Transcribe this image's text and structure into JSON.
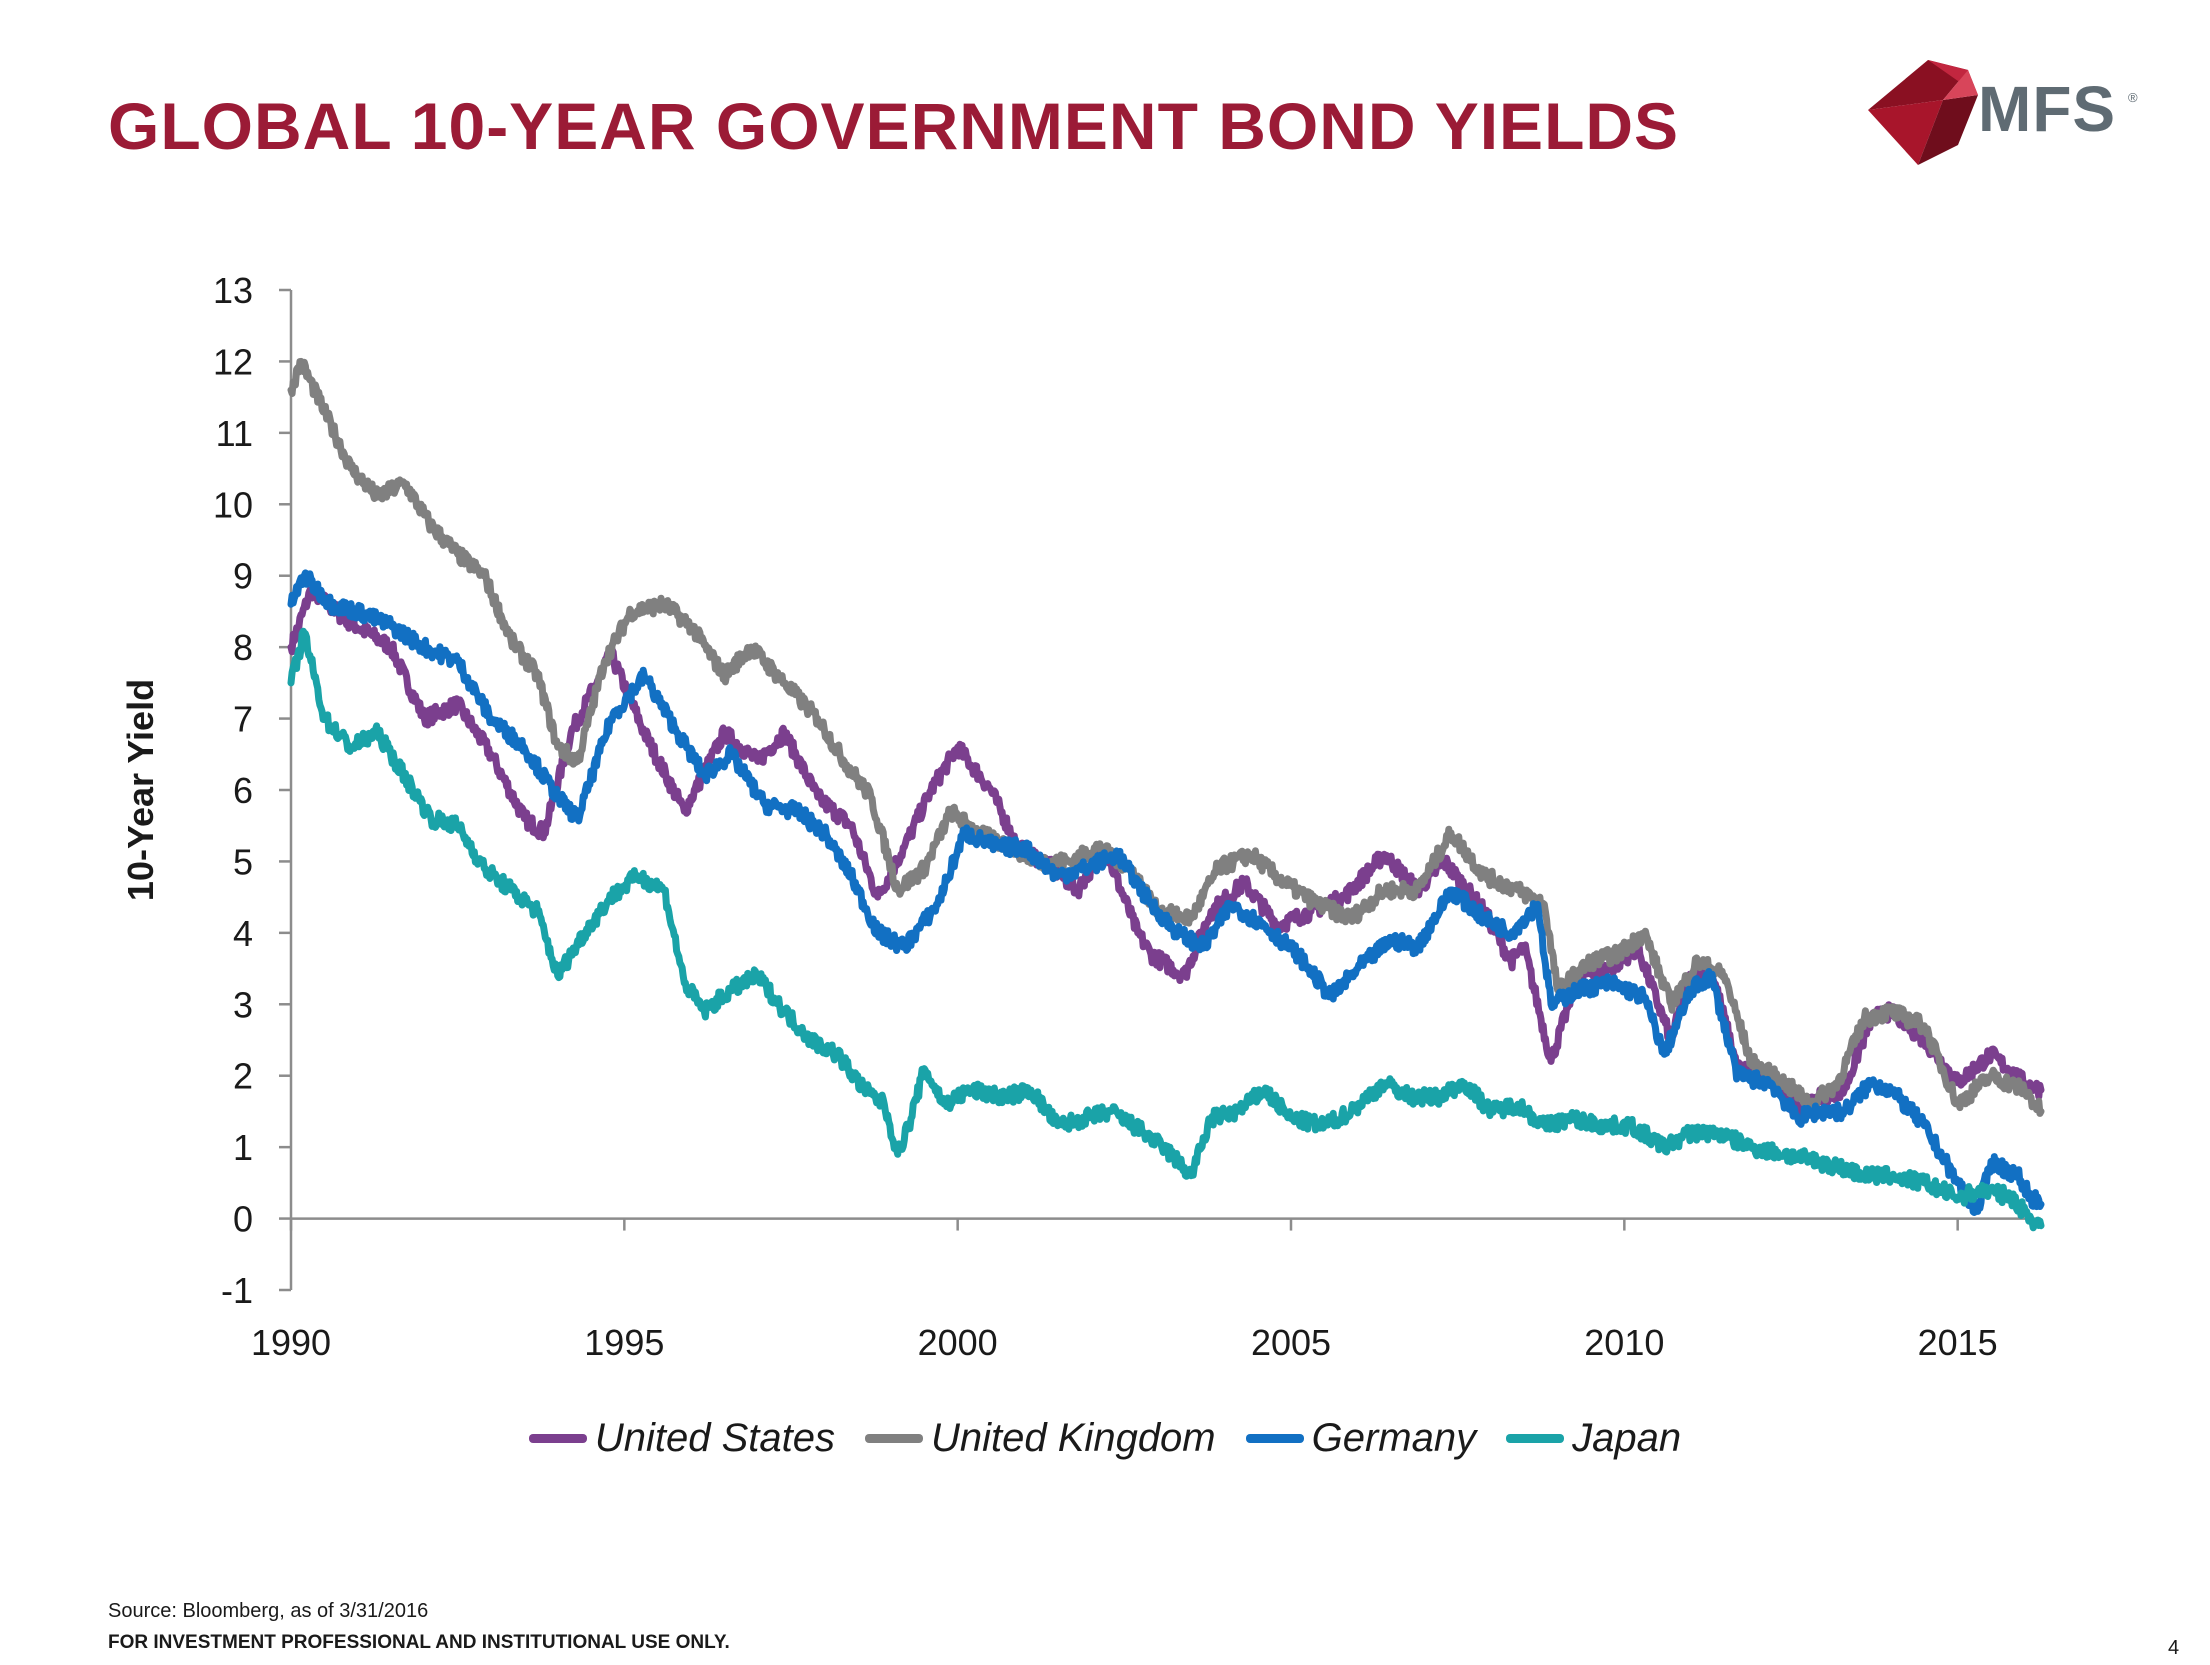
{
  "header": {
    "title": "GLOBAL 10-YEAR GOVERNMENT BOND YIELDS",
    "logo_text": "MFS",
    "logo_reg": "®"
  },
  "colors": {
    "title": "#9b1b36",
    "united_states": "#7b3f8e",
    "united_kingdom": "#808080",
    "germany": "#1270c3",
    "japan": "#1aa3a8",
    "logo_red": "#a8152b"
  },
  "chart_data": {
    "type": "line",
    "title": "",
    "xlabel": "",
    "ylabel": "10-Year Yield",
    "xlim": [
      1990,
      2016.25
    ],
    "ylim": [
      -1,
      13
    ],
    "x_ticks": [
      "1990",
      "1995",
      "2000",
      "2005",
      "2010",
      "2015"
    ],
    "y_ticks": [
      "-1",
      "0",
      "1",
      "2",
      "3",
      "4",
      "5",
      "6",
      "7",
      "8",
      "9",
      "10",
      "11",
      "12",
      "13"
    ],
    "grid": false,
    "legend_position": "bottom",
    "series": [
      {
        "name": "United States",
        "color": "#7b3f8e",
        "points": [
          [
            1990.0,
            8.0
          ],
          [
            1990.3,
            8.8
          ],
          [
            1990.8,
            8.4
          ],
          [
            1991.5,
            8.0
          ],
          [
            1992.0,
            7.0
          ],
          [
            1992.5,
            7.2
          ],
          [
            1993.0,
            6.5
          ],
          [
            1993.5,
            5.6
          ],
          [
            1993.8,
            5.4
          ],
          [
            1994.2,
            6.8
          ],
          [
            1994.8,
            7.9
          ],
          [
            1995.3,
            6.8
          ],
          [
            1995.9,
            5.7
          ],
          [
            1996.5,
            6.8
          ],
          [
            1997.0,
            6.4
          ],
          [
            1997.4,
            6.8
          ],
          [
            1997.9,
            5.9
          ],
          [
            1998.4,
            5.5
          ],
          [
            1998.8,
            4.5
          ],
          [
            1999.2,
            5.2
          ],
          [
            1999.6,
            6.0
          ],
          [
            2000.0,
            6.6
          ],
          [
            2000.5,
            6.0
          ],
          [
            2000.9,
            5.2
          ],
          [
            2001.3,
            5.0
          ],
          [
            2001.8,
            4.6
          ],
          [
            2002.2,
            5.2
          ],
          [
            2002.7,
            4.0
          ],
          [
            2002.9,
            3.7
          ],
          [
            2003.4,
            3.4
          ],
          [
            2003.8,
            4.3
          ],
          [
            2004.3,
            4.7
          ],
          [
            2004.8,
            4.1
          ],
          [
            2005.3,
            4.3
          ],
          [
            2005.8,
            4.5
          ],
          [
            2006.4,
            5.1
          ],
          [
            2006.9,
            4.6
          ],
          [
            2007.3,
            5.0
          ],
          [
            2007.9,
            4.3
          ],
          [
            2008.3,
            3.6
          ],
          [
            2008.5,
            3.8
          ],
          [
            2008.9,
            2.2
          ],
          [
            2009.3,
            3.4
          ],
          [
            2009.8,
            3.5
          ],
          [
            2010.2,
            3.8
          ],
          [
            2010.7,
            2.5
          ],
          [
            2011.0,
            3.4
          ],
          [
            2011.3,
            3.5
          ],
          [
            2011.7,
            2.1
          ],
          [
            2012.2,
            2.0
          ],
          [
            2012.6,
            1.5
          ],
          [
            2012.9,
            1.7
          ],
          [
            2013.3,
            1.8
          ],
          [
            2013.7,
            2.8
          ],
          [
            2014.0,
            2.9
          ],
          [
            2014.5,
            2.5
          ],
          [
            2015.0,
            1.9
          ],
          [
            2015.5,
            2.3
          ],
          [
            2016.0,
            1.9
          ],
          [
            2016.25,
            1.8
          ]
        ]
      },
      {
        "name": "United Kingdom",
        "color": "#808080",
        "points": [
          [
            1990.0,
            11.6
          ],
          [
            1990.15,
            12.0
          ],
          [
            1990.5,
            11.3
          ],
          [
            1990.9,
            10.5
          ],
          [
            1991.3,
            10.1
          ],
          [
            1991.7,
            10.3
          ],
          [
            1992.1,
            9.7
          ],
          [
            1992.5,
            9.3
          ],
          [
            1992.9,
            9.0
          ],
          [
            1993.3,
            8.1
          ],
          [
            1993.7,
            7.6
          ],
          [
            1994.0,
            6.6
          ],
          [
            1994.3,
            6.4
          ],
          [
            1994.7,
            7.8
          ],
          [
            1995.1,
            8.5
          ],
          [
            1995.6,
            8.6
          ],
          [
            1996.0,
            8.3
          ],
          [
            1996.5,
            7.6
          ],
          [
            1996.9,
            8.0
          ],
          [
            1997.4,
            7.5
          ],
          [
            1997.9,
            7.0
          ],
          [
            1998.3,
            6.4
          ],
          [
            1998.7,
            5.9
          ],
          [
            1999.1,
            4.6
          ],
          [
            1999.5,
            4.9
          ],
          [
            1999.9,
            5.7
          ],
          [
            2000.3,
            5.4
          ],
          [
            2000.8,
            5.2
          ],
          [
            2001.2,
            5.0
          ],
          [
            2001.7,
            5.0
          ],
          [
            2002.1,
            5.2
          ],
          [
            2002.6,
            4.9
          ],
          [
            2003.0,
            4.3
          ],
          [
            2003.5,
            4.2
          ],
          [
            2003.9,
            4.9
          ],
          [
            2004.4,
            5.1
          ],
          [
            2004.9,
            4.7
          ],
          [
            2005.4,
            4.4
          ],
          [
            2005.9,
            4.2
          ],
          [
            2006.4,
            4.6
          ],
          [
            2006.9,
            4.6
          ],
          [
            2007.4,
            5.4
          ],
          [
            2007.9,
            4.8
          ],
          [
            2008.4,
            4.6
          ],
          [
            2008.8,
            4.4
          ],
          [
            2009.0,
            3.2
          ],
          [
            2009.5,
            3.6
          ],
          [
            2009.9,
            3.7
          ],
          [
            2010.3,
            4.0
          ],
          [
            2010.7,
            3.0
          ],
          [
            2011.1,
            3.6
          ],
          [
            2011.5,
            3.4
          ],
          [
            2011.9,
            2.2
          ],
          [
            2012.4,
            1.9
          ],
          [
            2012.8,
            1.6
          ],
          [
            2013.2,
            1.9
          ],
          [
            2013.6,
            2.8
          ],
          [
            2014.0,
            2.9
          ],
          [
            2014.5,
            2.7
          ],
          [
            2015.0,
            1.6
          ],
          [
            2015.5,
            2.0
          ],
          [
            2016.0,
            1.8
          ],
          [
            2016.25,
            1.5
          ]
        ]
      },
      {
        "name": "Germany",
        "color": "#1270c3",
        "points": [
          [
            1990.0,
            8.6
          ],
          [
            1990.2,
            9.0
          ],
          [
            1990.6,
            8.6
          ],
          [
            1991.0,
            8.5
          ],
          [
            1991.5,
            8.3
          ],
          [
            1992.0,
            8.0
          ],
          [
            1992.5,
            7.8
          ],
          [
            1993.0,
            7.0
          ],
          [
            1993.5,
            6.6
          ],
          [
            1994.0,
            5.9
          ],
          [
            1994.3,
            5.6
          ],
          [
            1994.8,
            7.0
          ],
          [
            1995.3,
            7.6
          ],
          [
            1995.8,
            6.8
          ],
          [
            1996.2,
            6.2
          ],
          [
            1996.6,
            6.5
          ],
          [
            1997.1,
            5.8
          ],
          [
            1997.6,
            5.7
          ],
          [
            1998.0,
            5.4
          ],
          [
            1998.4,
            4.8
          ],
          [
            1998.8,
            4.0
          ],
          [
            1999.2,
            3.8
          ],
          [
            1999.7,
            4.4
          ],
          [
            2000.1,
            5.4
          ],
          [
            2000.6,
            5.2
          ],
          [
            2001.0,
            5.2
          ],
          [
            2001.5,
            4.8
          ],
          [
            2001.9,
            4.9
          ],
          [
            2002.4,
            5.1
          ],
          [
            2002.9,
            4.4
          ],
          [
            2003.3,
            4.0
          ],
          [
            2003.7,
            3.8
          ],
          [
            2004.1,
            4.4
          ],
          [
            2004.6,
            4.1
          ],
          [
            2005.1,
            3.7
          ],
          [
            2005.6,
            3.1
          ],
          [
            2006.0,
            3.5
          ],
          [
            2006.5,
            3.9
          ],
          [
            2006.9,
            3.8
          ],
          [
            2007.4,
            4.6
          ],
          [
            2007.9,
            4.2
          ],
          [
            2008.3,
            4.0
          ],
          [
            2008.7,
            4.4
          ],
          [
            2008.9,
            3.0
          ],
          [
            2009.3,
            3.2
          ],
          [
            2009.8,
            3.3
          ],
          [
            2010.3,
            3.1
          ],
          [
            2010.6,
            2.3
          ],
          [
            2011.0,
            3.2
          ],
          [
            2011.3,
            3.4
          ],
          [
            2011.7,
            2.0
          ],
          [
            2012.2,
            1.9
          ],
          [
            2012.6,
            1.4
          ],
          [
            2012.9,
            1.5
          ],
          [
            2013.3,
            1.5
          ],
          [
            2013.7,
            1.9
          ],
          [
            2014.0,
            1.8
          ],
          [
            2014.5,
            1.3
          ],
          [
            2015.0,
            0.5
          ],
          [
            2015.3,
            0.1
          ],
          [
            2015.5,
            0.8
          ],
          [
            2015.9,
            0.6
          ],
          [
            2016.1,
            0.3
          ],
          [
            2016.25,
            0.2
          ]
        ]
      },
      {
        "name": "Japan",
        "color": "#1aa3a8",
        "points": [
          [
            1990.0,
            7.5
          ],
          [
            1990.2,
            8.2
          ],
          [
            1990.5,
            7.0
          ],
          [
            1990.9,
            6.6
          ],
          [
            1991.3,
            6.8
          ],
          [
            1991.7,
            6.2
          ],
          [
            1992.1,
            5.6
          ],
          [
            1992.5,
            5.5
          ],
          [
            1992.9,
            4.9
          ],
          [
            1993.3,
            4.6
          ],
          [
            1993.7,
            4.3
          ],
          [
            1994.0,
            3.4
          ],
          [
            1994.4,
            4.0
          ],
          [
            1994.8,
            4.5
          ],
          [
            1995.2,
            4.8
          ],
          [
            1995.6,
            4.6
          ],
          [
            1995.9,
            3.3
          ],
          [
            1996.2,
            2.9
          ],
          [
            1996.6,
            3.2
          ],
          [
            1997.0,
            3.4
          ],
          [
            1997.4,
            2.9
          ],
          [
            1997.8,
            2.5
          ],
          [
            1998.2,
            2.3
          ],
          [
            1998.6,
            1.8
          ],
          [
            1998.9,
            1.6
          ],
          [
            1999.1,
            0.9
          ],
          [
            1999.3,
            1.4
          ],
          [
            1999.5,
            2.1
          ],
          [
            1999.8,
            1.6
          ],
          [
            2000.2,
            1.8
          ],
          [
            2000.7,
            1.7
          ],
          [
            2001.1,
            1.8
          ],
          [
            2001.5,
            1.3
          ],
          [
            2001.9,
            1.4
          ],
          [
            2002.3,
            1.5
          ],
          [
            2002.8,
            1.2
          ],
          [
            2003.2,
            0.9
          ],
          [
            2003.5,
            0.6
          ],
          [
            2003.8,
            1.4
          ],
          [
            2004.2,
            1.5
          ],
          [
            2004.6,
            1.8
          ],
          [
            2005.0,
            1.4
          ],
          [
            2005.5,
            1.3
          ],
          [
            2005.9,
            1.5
          ],
          [
            2006.4,
            1.9
          ],
          [
            2006.8,
            1.7
          ],
          [
            2007.2,
            1.7
          ],
          [
            2007.6,
            1.9
          ],
          [
            2008.0,
            1.5
          ],
          [
            2008.4,
            1.6
          ],
          [
            2008.8,
            1.3
          ],
          [
            2009.2,
            1.4
          ],
          [
            2009.7,
            1.3
          ],
          [
            2010.1,
            1.3
          ],
          [
            2010.6,
            1.0
          ],
          [
            2011.0,
            1.2
          ],
          [
            2011.4,
            1.2
          ],
          [
            2011.9,
            1.0
          ],
          [
            2012.4,
            0.9
          ],
          [
            2012.9,
            0.8
          ],
          [
            2013.3,
            0.7
          ],
          [
            2013.6,
            0.6
          ],
          [
            2014.0,
            0.6
          ],
          [
            2014.5,
            0.5
          ],
          [
            2015.0,
            0.3
          ],
          [
            2015.4,
            0.4
          ],
          [
            2015.8,
            0.3
          ],
          [
            2016.1,
            0.0
          ],
          [
            2016.25,
            -0.1
          ]
        ]
      }
    ]
  },
  "footer": {
    "source": "Source: Bloomberg, as of 3/31/2016",
    "disclaimer": "FOR INVESTMENT PROFESSIONAL AND INSTITUTIONAL USE ONLY.",
    "page_number": "4"
  }
}
